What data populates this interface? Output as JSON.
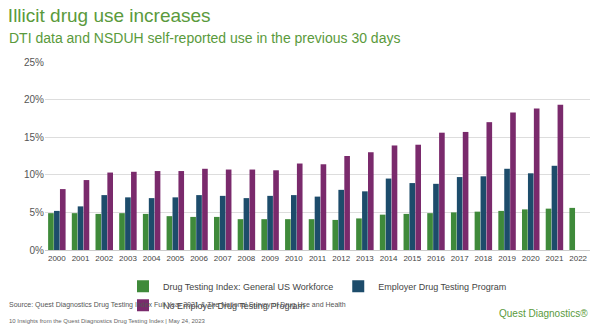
{
  "chart_data": {
    "type": "bar",
    "title": "Illicit drug use increases",
    "subtitle": "DTI data and NSDUH self-reported use in the previous 30 days",
    "annotations": [
      "Source: Quest Diagnostics Drug Testing Index Full Year 2021 & The National Survey of Drug Use and Health",
      "10 Insights from the Quest Diagnostics Drug Testing Index | May 24, 2023",
      "Quest Diagnostics®"
    ],
    "categories": [
      "2000",
      "2001",
      "2002",
      "2003",
      "2004",
      "2005",
      "2006",
      "2007",
      "2008",
      "2009",
      "2010",
      "2011",
      "2012",
      "2013",
      "2014",
      "2015",
      "2016",
      "2017",
      "2018",
      "2019",
      "2020",
      "2021",
      "2022"
    ],
    "series": [
      {
        "name": "Drug Testing Index: General US Workforce",
        "color": "#3f8a3a",
        "values": [
          4.9,
          4.9,
          4.8,
          4.9,
          4.8,
          4.5,
          4.4,
          4.4,
          4.1,
          4.1,
          4.1,
          4.1,
          4.0,
          4.2,
          4.7,
          4.8,
          4.9,
          5.0,
          5.1,
          5.2,
          5.4,
          5.5,
          5.6
        ]
      },
      {
        "name": "Employer Drug Testing Program",
        "color": "#1d4c6b",
        "values": [
          5.2,
          5.8,
          7.3,
          7.0,
          6.9,
          7.0,
          7.3,
          7.2,
          6.9,
          7.2,
          7.3,
          7.1,
          8.0,
          7.8,
          9.5,
          8.9,
          8.8,
          9.7,
          9.8,
          10.8,
          10.2,
          11.2,
          null
        ]
      },
      {
        "name": "No Employer Drug Testing Program",
        "color": "#7a2a6c",
        "values": [
          8.1,
          9.3,
          10.3,
          10.4,
          10.5,
          10.5,
          10.8,
          10.7,
          10.7,
          10.6,
          11.5,
          11.4,
          12.5,
          13.0,
          13.9,
          14.0,
          15.6,
          15.7,
          17.0,
          18.3,
          18.8,
          19.3,
          null
        ]
      }
    ],
    "ylim": [
      0,
      25
    ],
    "yticks": [
      {
        "value": 0,
        "label": "0%"
      },
      {
        "value": 5,
        "label": "5%"
      },
      {
        "value": 10,
        "label": "10%"
      },
      {
        "value": 15,
        "label": "15%"
      },
      {
        "value": 20,
        "label": "20%"
      },
      {
        "value": 25,
        "label": "25%"
      }
    ],
    "grid": true,
    "legend": "bottom"
  }
}
